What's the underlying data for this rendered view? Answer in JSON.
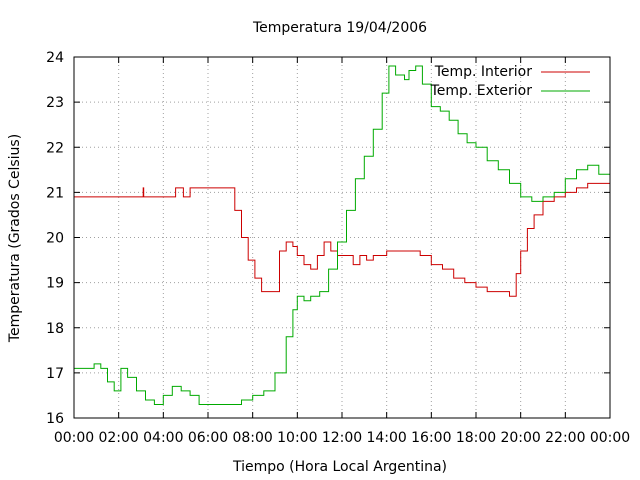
{
  "chart_data": {
    "type": "line",
    "title": "Temperatura 19/04/2006",
    "xlabel": "Tiempo (Hora Local Argentina)",
    "ylabel": "Temperatura (Grados Celsius)",
    "x_unit": "hours",
    "xlim": [
      0,
      24
    ],
    "ylim": [
      16,
      24
    ],
    "xticks": [
      {
        "value": 0,
        "label": "00:00"
      },
      {
        "value": 2,
        "label": "02:00"
      },
      {
        "value": 4,
        "label": "04:00"
      },
      {
        "value": 6,
        "label": "06:00"
      },
      {
        "value": 8,
        "label": "08:00"
      },
      {
        "value": 10,
        "label": "10:00"
      },
      {
        "value": 12,
        "label": "12:00"
      },
      {
        "value": 14,
        "label": "14:00"
      },
      {
        "value": 16,
        "label": "16:00"
      },
      {
        "value": 18,
        "label": "18:00"
      },
      {
        "value": 20,
        "label": "20:00"
      },
      {
        "value": 22,
        "label": "22:00"
      },
      {
        "value": 24,
        "label": "00:00"
      }
    ],
    "yticks": [
      16,
      17,
      18,
      19,
      20,
      21,
      22,
      23,
      24
    ],
    "grid": true,
    "legend_position": "top-right",
    "series": [
      {
        "name": "Temp. Interior",
        "color": "#cc0000",
        "x": [
          0,
          3.1,
          3.1,
          3.12,
          3.12,
          4.55,
          4.55,
          4.9,
          4.9,
          5.2,
          5.2,
          7.0,
          7.2,
          7.5,
          7.8,
          8.1,
          8.4,
          8.7,
          9.2,
          9.5,
          9.8,
          10.0,
          10.3,
          10.6,
          10.9,
          11.2,
          11.5,
          11.8,
          12.2,
          12.5,
          12.8,
          13.1,
          13.4,
          13.7,
          14.0,
          15.0,
          15.5,
          16.0,
          16.5,
          17.0,
          17.5,
          18.0,
          18.5,
          19.5,
          19.8,
          20.0,
          20.3,
          20.6,
          21.0,
          21.5,
          22.0,
          22.5,
          23.0,
          24.0
        ],
        "y": [
          20.9,
          20.9,
          21.1,
          21.1,
          20.9,
          20.9,
          21.1,
          21.1,
          20.9,
          20.9,
          21.1,
          21.1,
          20.6,
          20.0,
          19.5,
          19.1,
          18.8,
          18.8,
          19.7,
          19.9,
          19.8,
          19.6,
          19.4,
          19.3,
          19.6,
          19.9,
          19.7,
          19.6,
          19.6,
          19.4,
          19.6,
          19.5,
          19.6,
          19.6,
          19.7,
          19.7,
          19.6,
          19.4,
          19.3,
          19.1,
          19.0,
          18.9,
          18.8,
          18.7,
          19.2,
          19.7,
          20.2,
          20.5,
          20.8,
          20.9,
          21.0,
          21.1,
          21.2,
          21.2
        ]
      },
      {
        "name": "Temp. Exterior",
        "color": "#00aa00",
        "x": [
          0,
          0.5,
          0.9,
          1.2,
          1.5,
          1.8,
          2.1,
          2.4,
          2.8,
          3.2,
          3.6,
          4.0,
          4.4,
          4.8,
          5.2,
          5.6,
          6.0,
          6.5,
          7.0,
          7.5,
          8.0,
          8.5,
          9.0,
          9.5,
          9.8,
          10.0,
          10.3,
          10.6,
          11.0,
          11.4,
          11.8,
          12.2,
          12.6,
          13.0,
          13.4,
          13.8,
          14.1,
          14.4,
          14.8,
          15.0,
          15.3,
          15.6,
          16.0,
          16.4,
          16.8,
          17.2,
          17.6,
          18.0,
          18.5,
          19.0,
          19.5,
          20.0,
          20.5,
          21.0,
          21.5,
          22.0,
          22.5,
          23.0,
          23.5,
          24.0
        ],
        "y": [
          17.1,
          17.1,
          17.2,
          17.1,
          16.8,
          16.6,
          17.1,
          16.9,
          16.6,
          16.4,
          16.3,
          16.5,
          16.7,
          16.6,
          16.5,
          16.3,
          16.3,
          16.3,
          16.3,
          16.4,
          16.5,
          16.6,
          17.0,
          17.8,
          18.4,
          18.7,
          18.6,
          18.7,
          18.8,
          19.3,
          19.9,
          20.6,
          21.3,
          21.8,
          22.4,
          23.2,
          23.8,
          23.6,
          23.5,
          23.7,
          23.8,
          23.4,
          22.9,
          22.8,
          22.6,
          22.3,
          22.1,
          22.0,
          21.7,
          21.5,
          21.2,
          20.9,
          20.8,
          20.9,
          21.0,
          21.3,
          21.5,
          21.6,
          21.4,
          21.3
        ]
      }
    ]
  }
}
